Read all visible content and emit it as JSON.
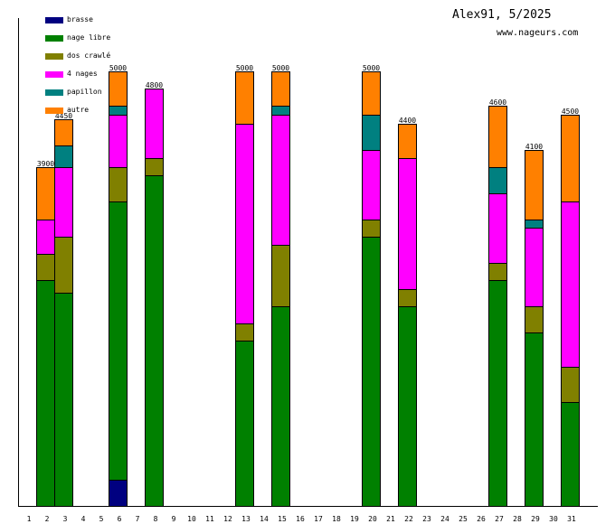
{
  "header": {
    "title": "Alex91, 5/2025",
    "site": "www.nageurs.com"
  },
  "chart_data": {
    "type": "bar",
    "stacked": true,
    "title": "Alex91, 5/2025",
    "xlabel": "",
    "ylabel": "",
    "ylim": [
      0,
      5000
    ],
    "grid": false,
    "legend_position": "top-left",
    "categories": [
      "1",
      "2",
      "3",
      "4",
      "5",
      "6",
      "7",
      "8",
      "9",
      "10",
      "11",
      "12",
      "13",
      "14",
      "15",
      "16",
      "17",
      "18",
      "19",
      "20",
      "21",
      "22",
      "23",
      "24",
      "25",
      "26",
      "27",
      "28",
      "29",
      "30",
      "31"
    ],
    "series": [
      {
        "name": "brasse",
        "color": "#000080",
        "values": [
          0,
          0,
          0,
          0,
          0,
          300,
          0,
          0,
          0,
          0,
          0,
          0,
          0,
          0,
          0,
          0,
          0,
          0,
          0,
          0,
          0,
          0,
          0,
          0,
          0,
          0,
          0,
          0,
          0,
          0,
          0
        ]
      },
      {
        "name": "nage libre",
        "color": "#008000",
        "values": [
          0,
          2600,
          2450,
          0,
          0,
          3200,
          0,
          3800,
          0,
          0,
          0,
          0,
          1900,
          0,
          2300,
          0,
          0,
          0,
          0,
          3100,
          0,
          2300,
          0,
          0,
          0,
          0,
          2600,
          0,
          2000,
          0,
          1200
        ]
      },
      {
        "name": "dos crawlé",
        "color": "#808000",
        "values": [
          0,
          300,
          650,
          0,
          0,
          400,
          0,
          200,
          0,
          0,
          0,
          0,
          200,
          0,
          700,
          0,
          0,
          0,
          0,
          200,
          0,
          200,
          0,
          0,
          0,
          0,
          200,
          0,
          300,
          0,
          400
        ]
      },
      {
        "name": "4 nages",
        "color": "#ff00ff",
        "values": [
          0,
          400,
          800,
          0,
          0,
          600,
          0,
          800,
          0,
          0,
          0,
          0,
          2300,
          0,
          1500,
          0,
          0,
          0,
          0,
          800,
          0,
          1500,
          0,
          0,
          0,
          0,
          800,
          0,
          900,
          0,
          1900
        ]
      },
      {
        "name": "papillon",
        "color": "#008080",
        "values": [
          0,
          0,
          250,
          0,
          0,
          100,
          0,
          0,
          0,
          0,
          0,
          0,
          0,
          0,
          100,
          0,
          0,
          0,
          0,
          400,
          0,
          0,
          0,
          0,
          0,
          0,
          300,
          0,
          100,
          0,
          0
        ]
      },
      {
        "name": "autre",
        "color": "#ff8000",
        "values": [
          0,
          600,
          300,
          0,
          0,
          400,
          0,
          0,
          0,
          0,
          0,
          0,
          600,
          0,
          400,
          0,
          0,
          0,
          0,
          500,
          0,
          400,
          0,
          0,
          0,
          0,
          700,
          0,
          800,
          0,
          1000
        ]
      }
    ],
    "totals_labels": [
      "",
      "3900",
      "4450",
      "",
      "",
      "5000",
      "",
      "4800",
      "",
      "",
      "",
      "",
      "5000",
      "",
      "5000",
      "",
      "",
      "",
      "",
      "5000",
      "",
      "4400",
      "",
      "",
      "",
      "",
      "4600",
      "",
      "4100",
      "",
      "4500"
    ]
  }
}
